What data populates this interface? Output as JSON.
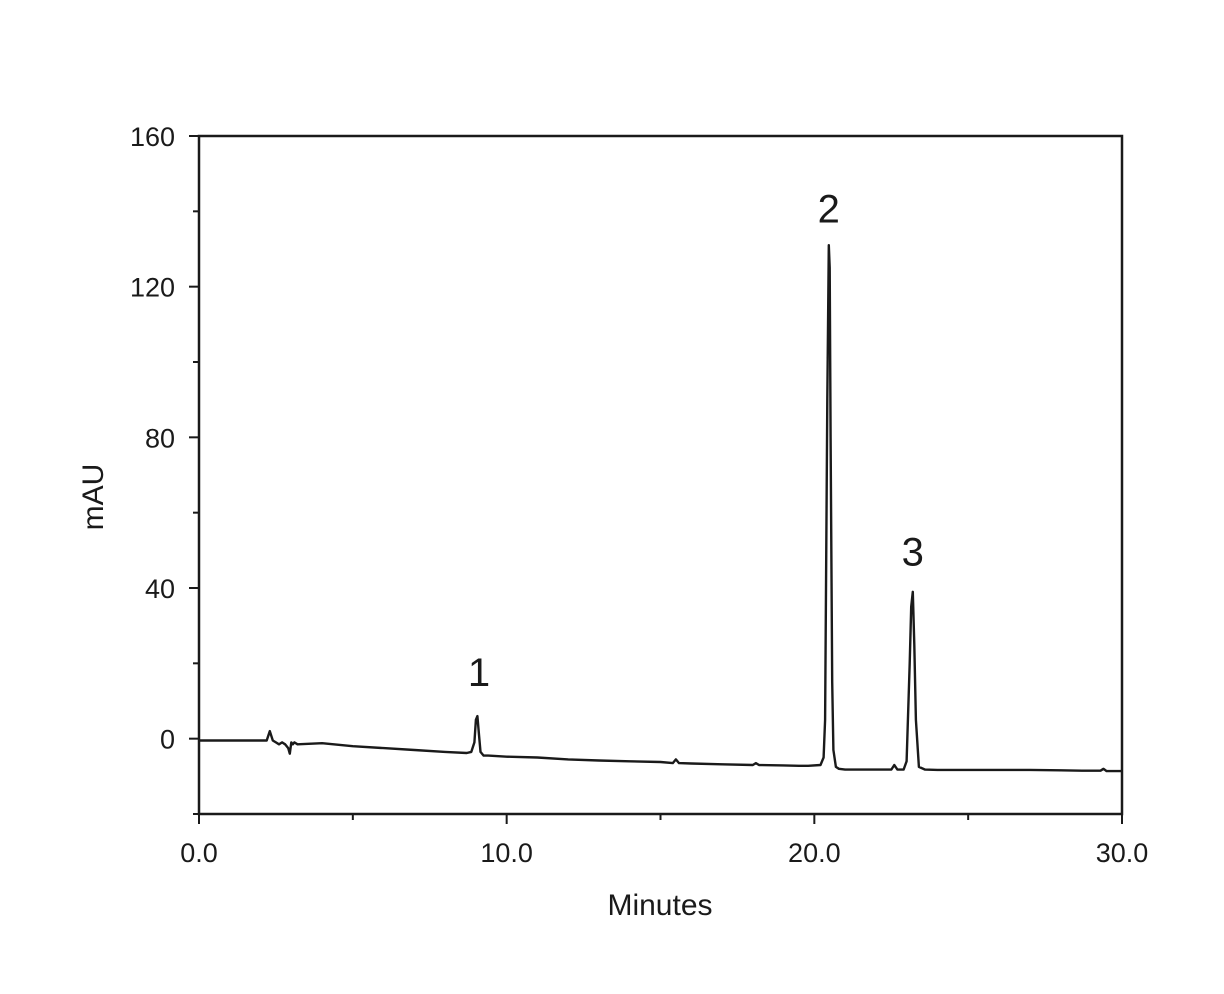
{
  "chart_data": {
    "type": "line",
    "title": "",
    "xlabel": "Minutes",
    "ylabel": "mAU",
    "xlim": [
      0,
      30
    ],
    "ylim": [
      -20,
      160
    ],
    "x_ticks": [
      0,
      10,
      20,
      30
    ],
    "x_tick_labels": [
      "0.0",
      "10.0",
      "20.0",
      "30.0"
    ],
    "x_minor_ticks": [
      5,
      15,
      25
    ],
    "y_ticks": [
      0,
      40,
      80,
      120,
      160
    ],
    "y_tick_labels": [
      "0",
      "40",
      "80",
      "120",
      "160"
    ],
    "y_minor_ticks": [
      -20,
      20,
      60,
      100,
      140
    ],
    "grid": false,
    "legend": "none",
    "line_color": "#1a1a1a",
    "series": [
      {
        "x": [
          0,
          2.0,
          2.2,
          2.3,
          2.4,
          2.5,
          2.6,
          2.7,
          2.8,
          2.9,
          2.95,
          3.0,
          3.05,
          3.1,
          3.2,
          4.0,
          5.0,
          6.0,
          7.0,
          8.0,
          8.7,
          8.85,
          8.95,
          9.0,
          9.05,
          9.1,
          9.15,
          9.25,
          9.4,
          10.0,
          11.0,
          12.0,
          13.0,
          14.0,
          15.0,
          15.4,
          15.5,
          15.6,
          16.0,
          17.0,
          18.0,
          18.1,
          18.2,
          19.0,
          19.5,
          19.8,
          20.2,
          20.3,
          20.35,
          20.42,
          20.47,
          20.5,
          20.53,
          20.58,
          20.62,
          20.7,
          20.8,
          21.0,
          21.5,
          22.0,
          22.5,
          22.6,
          22.7,
          22.9,
          23.0,
          23.1,
          23.15,
          23.2,
          23.25,
          23.3,
          23.4,
          23.6,
          24.0,
          25.0,
          26.0,
          27.0,
          28.0,
          28.7,
          29.3,
          29.4,
          29.5,
          30.0
        ],
        "y": [
          -0.5,
          -0.5,
          -0.5,
          2,
          -0.5,
          -1,
          -1.5,
          -1,
          -1.5,
          -2.5,
          -4,
          -1,
          -1.5,
          -1,
          -1.5,
          -1.2,
          -2,
          -2.5,
          -3,
          -3.5,
          -3.8,
          -3.5,
          -1,
          5,
          6,
          1,
          -3.5,
          -4.5,
          -4.5,
          -4.8,
          -5,
          -5.5,
          -5.8,
          -6,
          -6.2,
          -6.5,
          -5.5,
          -6.5,
          -6.6,
          -6.8,
          -7,
          -6.5,
          -7,
          -7.1,
          -7.2,
          -7.2,
          -7,
          -5,
          5,
          90,
          131,
          125,
          80,
          15,
          -3,
          -7.5,
          -8,
          -8.2,
          -8.2,
          -8.2,
          -8.2,
          -7,
          -8.2,
          -8.2,
          -6,
          20,
          35,
          39,
          25,
          5,
          -7.5,
          -8.2,
          -8.3,
          -8.3,
          -8.3,
          -8.3,
          -8.4,
          -8.5,
          -8.5,
          -8,
          -8.6,
          -8.6
        ]
      }
    ],
    "annotations": [
      {
        "text": "1",
        "x": 9.1,
        "y": 14
      },
      {
        "text": "2",
        "x": 20.47,
        "y": 137
      },
      {
        "text": "3",
        "x": 23.2,
        "y": 46
      }
    ]
  }
}
